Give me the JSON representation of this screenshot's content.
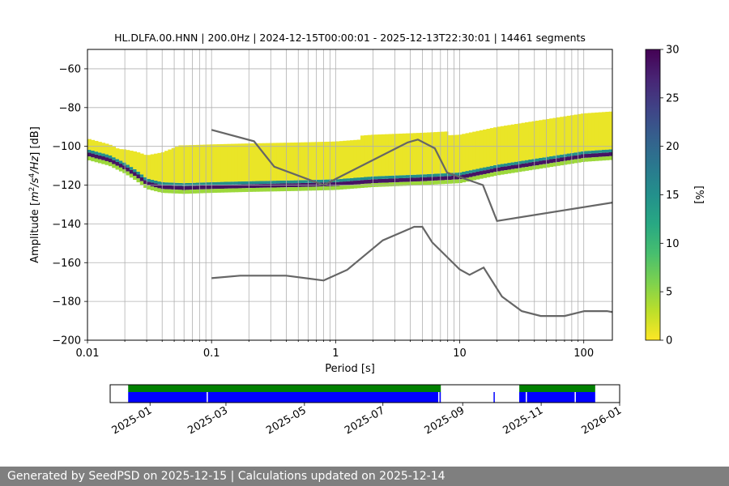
{
  "chart_data": [
    {
      "type": "heatmap",
      "title": "HL.DLFA.00.HNN | 200.0Hz | 2024-12-15T00:00:01 - 2025-12-13T22:30:01 | 14461 segments",
      "xlabel": "Period [s]",
      "ylabel_parts": [
        "Amplitude [",
        "m",
        "2",
        "/",
        "s",
        "4",
        "/",
        "Hz",
        "] [dB]"
      ],
      "x_scale": "log",
      "xlim": [
        0.01,
        170
      ],
      "ylim": [
        -200,
        -50
      ],
      "x_tick_labels": [
        {
          "value": 0.01,
          "label": "0.01"
        },
        {
          "value": 0.1,
          "label": "0.1"
        },
        {
          "value": 1,
          "label": "1"
        },
        {
          "value": 10,
          "label": "10"
        },
        {
          "value": 100,
          "label": "100"
        }
      ],
      "y_tick_labels": [
        {
          "value": -60,
          "label": "−60"
        },
        {
          "value": -80,
          "label": "−80"
        },
        {
          "value": -100,
          "label": "−100"
        },
        {
          "value": -120,
          "label": "−120"
        },
        {
          "value": -140,
          "label": "−140"
        },
        {
          "value": -160,
          "label": "−160"
        },
        {
          "value": -180,
          "label": "−180"
        },
        {
          "value": -200,
          "label": "−200"
        }
      ],
      "grid": true,
      "colorbar": {
        "label": "[%]",
        "range": [
          0,
          30
        ],
        "ticks": [
          "0",
          "5",
          "10",
          "15",
          "20",
          "25",
          "30"
        ],
        "colormap": "viridis_r"
      },
      "density_ridge": {
        "x": [
          0.01,
          0.015,
          0.02,
          0.025,
          0.03,
          0.04,
          0.06,
          0.1,
          0.2,
          0.5,
          1,
          2,
          5,
          10,
          20,
          50,
          100,
          170
        ],
        "y": [
          -104,
          -107,
          -111,
          -115,
          -119,
          -121,
          -121.5,
          -121,
          -120.5,
          -120,
          -119.5,
          -118,
          -117,
          -116,
          -112,
          -108,
          -105,
          -104
        ]
      },
      "series": [
        {
          "name": "",
          "color": "#666666",
          "x": [
            0.1,
            0.17,
            0.4,
            0.8,
            1.24,
            2.4,
            4.3,
            5,
            6,
            10,
            12,
            15.6,
            21.9,
            31.6,
            45,
            70,
            101,
            154,
            170
          ],
          "y": [
            -168,
            -166.7,
            -166.7,
            -169.2,
            -163.7,
            -148.5,
            -141.5,
            -141.5,
            -149.5,
            -163.5,
            -166.3,
            -162.5,
            -177.5,
            -185,
            -187.5,
            -187.5,
            -185,
            -185,
            -185.5
          ]
        },
        {
          "name": "",
          "color": "#666666",
          "x": [
            0.1,
            0.22,
            0.32,
            0.8,
            3.8,
            4.6,
            6.3,
            7.9,
            15.4,
            20,
            170
          ],
          "y": [
            -91.5,
            -97.4,
            -110.5,
            -120,
            -98,
            -96.5,
            -101,
            -113.5,
            -120,
            -138.5,
            -129
          ]
        }
      ]
    },
    {
      "type": "timeline",
      "x_tick_labels": [
        "2025-01",
        "2025-03",
        "2025-05",
        "2025-07",
        "2025-09",
        "2025-11",
        "2026-01"
      ],
      "x_tick_dates": [
        "2025-01-01",
        "2025-03-01",
        "2025-05-01",
        "2025-07-01",
        "2025-09-01",
        "2025-11-01",
        "2026-01-01"
      ],
      "xlim": [
        "2024-12-01",
        "2026-01-01"
      ],
      "green_color": "#008000",
      "blue_color": "#0000ff",
      "green_spans": [
        [
          "2024-12-15",
          "2025-08-15"
        ],
        [
          "2025-10-15",
          "2025-12-13"
        ]
      ],
      "blue_spans": [
        [
          "2024-12-15",
          "2025-08-15"
        ],
        [
          "2025-10-15",
          "2025-12-13"
        ]
      ],
      "blue_gaps": [
        "2025-02-14",
        "2025-08-13",
        "2025-10-20",
        "2025-11-27"
      ],
      "blue_marks": [
        "2025-09-25",
        "2025-10-15"
      ]
    }
  ],
  "footer": {
    "text": "Generated by SeedPSD on 2025-12-15 | Calculations updated on 2025-12-14"
  }
}
